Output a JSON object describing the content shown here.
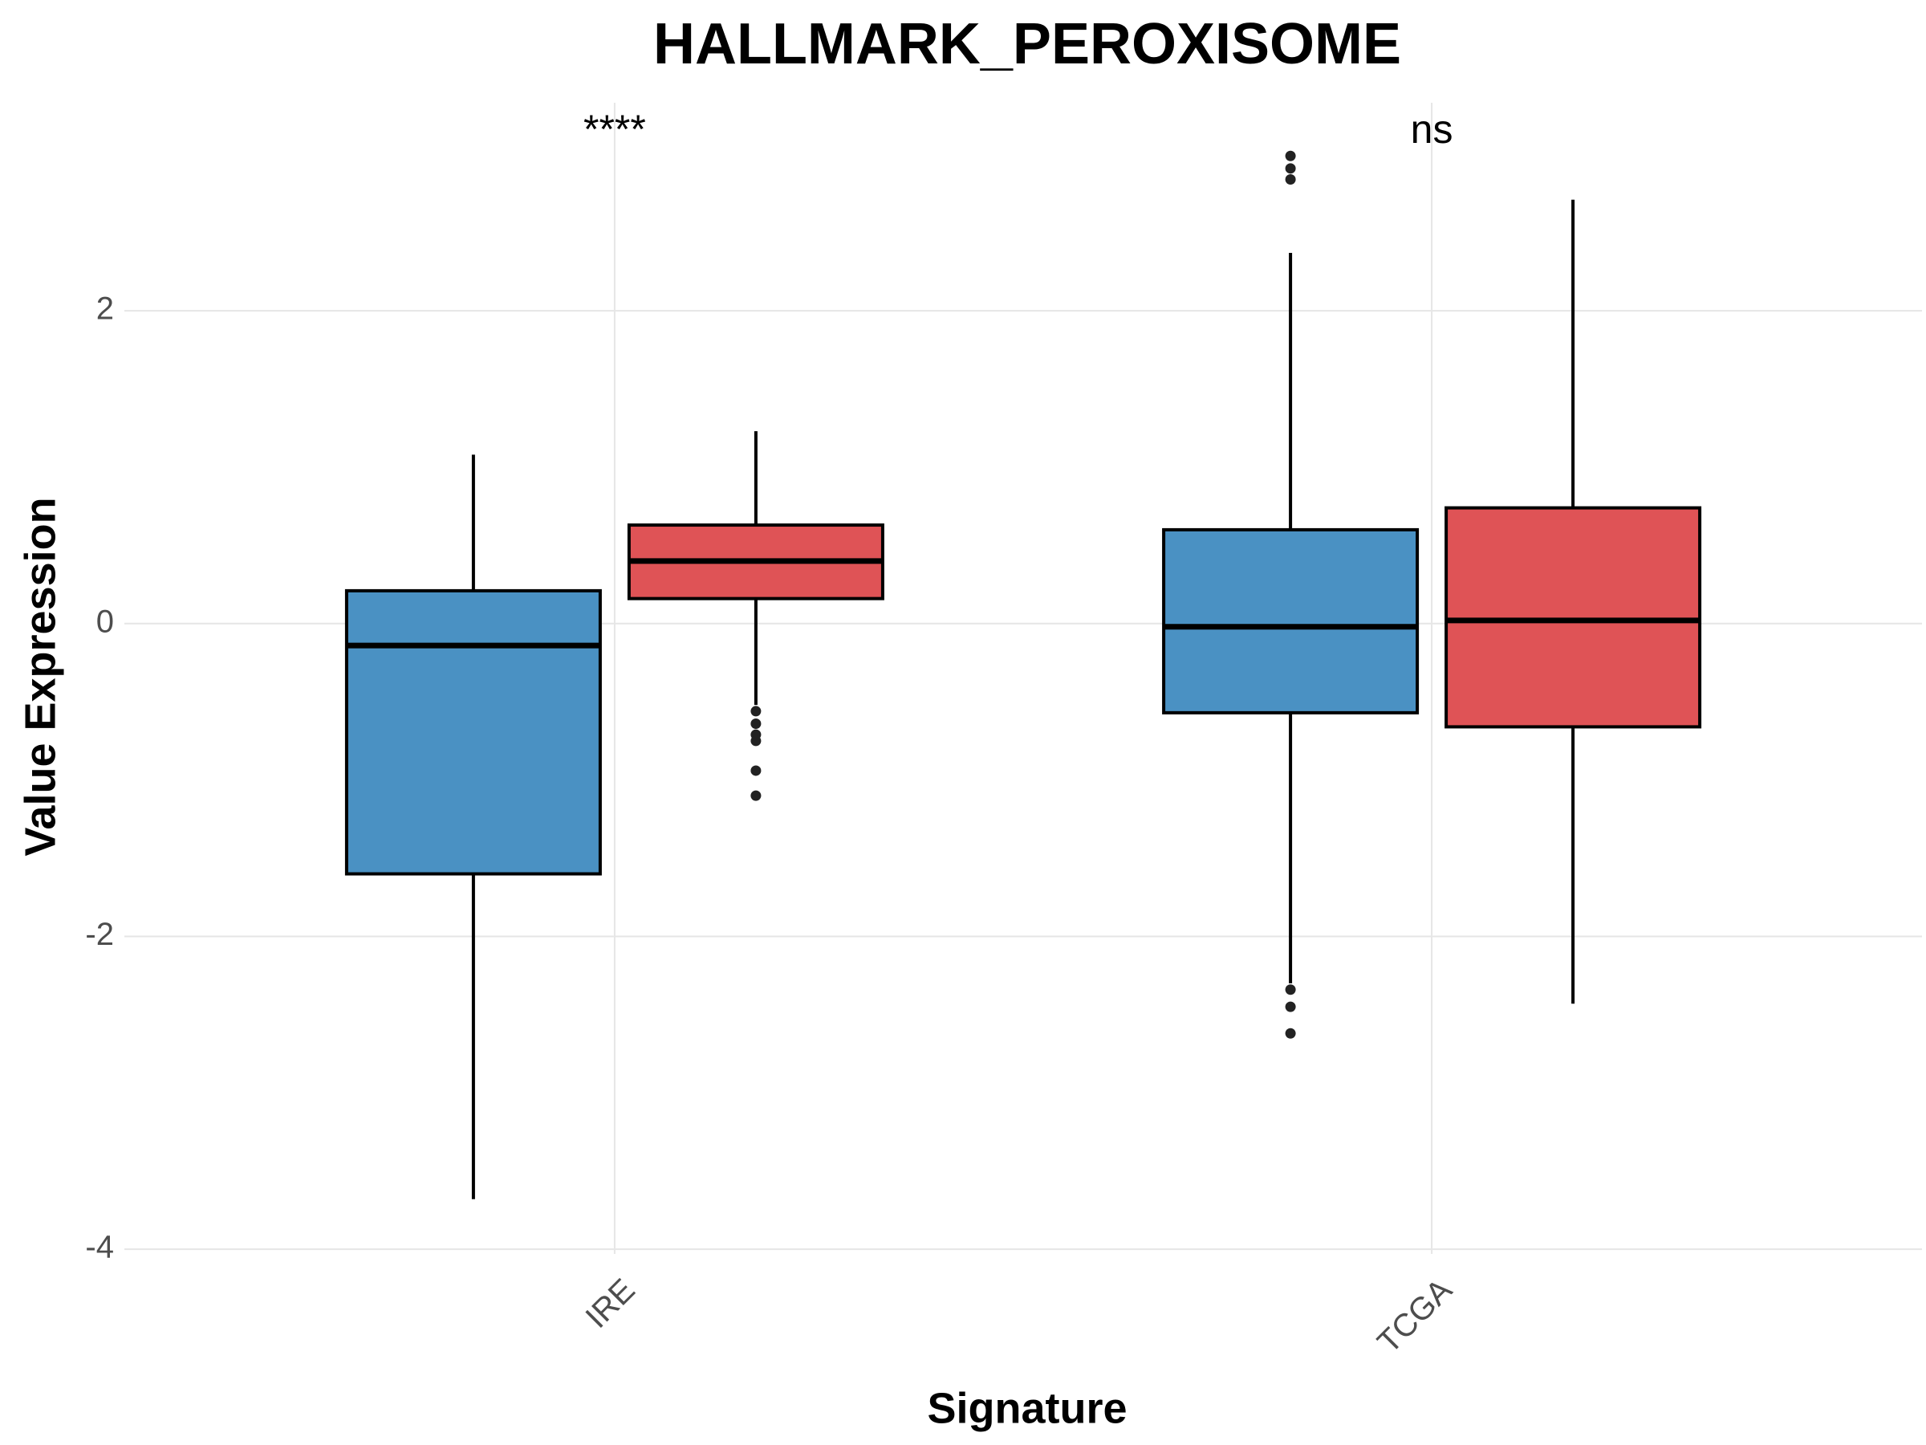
{
  "chart_data": {
    "type": "box",
    "title": "HALLMARK_PEROXISOME",
    "x_label": "Signature",
    "y_label": "Value Expression",
    "categories": [
      "IRE",
      "TCGA"
    ],
    "series": [
      {
        "color": "#4a91c3",
        "min": [
          -3.68,
          -2.3
        ],
        "q1": [
          -1.6,
          -0.57
        ],
        "median": [
          -0.14,
          -0.02
        ],
        "q3": [
          0.21,
          0.6
        ],
        "max": [
          1.08,
          2.37
        ],
        "outliers": [
          [],
          [
            2.99,
            2.91,
            2.84,
            -2.34,
            -2.45,
            -2.62
          ]
        ]
      },
      {
        "color": "#df5356",
        "min": [
          -0.52,
          -2.43
        ],
        "q1": [
          0.16,
          -0.66
        ],
        "median": [
          0.4,
          0.02
        ],
        "q3": [
          0.63,
          0.74
        ],
        "max": [
          1.23,
          2.71
        ],
        "outliers": [
          [
            -0.56,
            -0.64,
            -0.71,
            -0.75,
            -0.94,
            -1.1
          ],
          []
        ]
      }
    ],
    "annotations": [
      {
        "text": "****",
        "category": 0
      },
      {
        "text": "ns",
        "category": 1
      }
    ],
    "ylim": [
      -4.03,
      3.33
    ],
    "yticks": [
      -4,
      -2,
      0,
      2
    ],
    "grid": true
  }
}
